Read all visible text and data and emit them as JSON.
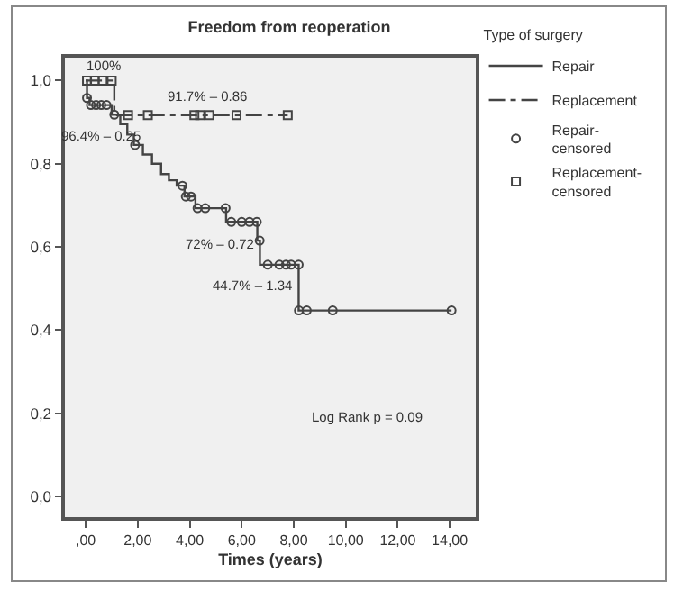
{
  "chart_data": {
    "type": "step",
    "title": "Freedom from reoperation",
    "xlabel": "Times (years)",
    "legend_title": "Type of surgery",
    "legend": "top right",
    "grid": false,
    "xlim": [
      -0.8,
      15
    ],
    "xticks": [
      {
        "value": 0,
        "label": ",00"
      },
      {
        "value": 2,
        "label": "2,00"
      },
      {
        "value": 4,
        "label": "4,00"
      },
      {
        "value": 6,
        "label": "6,00"
      },
      {
        "value": 8,
        "label": "8,00"
      },
      {
        "value": 10,
        "label": "10,00"
      },
      {
        "value": 12,
        "label": "12,00"
      },
      {
        "value": 14,
        "label": "14,00"
      }
    ],
    "ylim": [
      -0.05,
      1.055
    ],
    "yticks": [
      {
        "value": 0,
        "label": "0,0"
      },
      {
        "value": 0.2,
        "label": "0,2"
      },
      {
        "value": 0.4,
        "label": "0,4"
      },
      {
        "value": 0.6,
        "label": "0,6"
      },
      {
        "value": 0.8,
        "label": "0,8"
      },
      {
        "value": 1,
        "label": "1,0"
      }
    ],
    "series": [
      {
        "name": "Repair",
        "color": "#444444",
        "line_style": "solid",
        "marker": "none",
        "x": [
          0,
          0.05,
          0.15,
          1.0,
          1.33,
          1.6,
          1.85,
          2.2,
          2.55,
          2.9,
          3.2,
          3.5,
          3.8,
          4.22,
          5.4,
          6.6,
          6.7,
          8.19,
          14.07
        ],
        "values": [
          1.0,
          0.958,
          0.941,
          0.918,
          0.895,
          0.87,
          0.845,
          0.822,
          0.8,
          0.775,
          0.76,
          0.747,
          0.721,
          0.693,
          0.66,
          0.615,
          0.557,
          0.447,
          0.447
        ]
      },
      {
        "name": "Replacement",
        "color": "#444444",
        "line_style": "dashed",
        "marker": "none",
        "x": [
          0,
          1.1,
          7.77
        ],
        "values": [
          1.0,
          0.917,
          0.917
        ]
      },
      {
        "name": "Repair-censored",
        "type": "scatter",
        "color": "#444444",
        "marker": "circle",
        "x": [
          0.05,
          0.2,
          0.4,
          0.6,
          0.8,
          1.1,
          1.9,
          3.72,
          3.85,
          4.05,
          4.3,
          4.6,
          5.38,
          5.6,
          6.0,
          6.3,
          6.58,
          6.69,
          7.0,
          7.45,
          7.7,
          7.9,
          8.19,
          8.2,
          8.5,
          9.5,
          14.07
        ],
        "values": [
          0.958,
          0.941,
          0.941,
          0.941,
          0.941,
          0.918,
          0.845,
          0.747,
          0.721,
          0.721,
          0.693,
          0.693,
          0.693,
          0.66,
          0.66,
          0.66,
          0.66,
          0.615,
          0.557,
          0.557,
          0.557,
          0.557,
          0.557,
          0.447,
          0.447,
          0.447,
          0.447
        ]
      },
      {
        "name": "Replacement-censored",
        "type": "scatter",
        "color": "#444444",
        "marker": "square",
        "x": [
          0.05,
          0.35,
          0.65,
          1.0,
          1.63,
          2.39,
          4.18,
          4.4,
          4.75,
          5.8,
          7.77
        ],
        "values": [
          1.0,
          1.0,
          1.0,
          1.0,
          0.917,
          0.917,
          0.917,
          0.917,
          0.917,
          0.917,
          0.917
        ]
      }
    ],
    "annotations": [
      "100%",
      "91.7% – 0.86",
      "96.4% – 0.25",
      "72% – 0.72",
      "44.7% – 1.34",
      "Log Rank p = 0.09"
    ]
  }
}
